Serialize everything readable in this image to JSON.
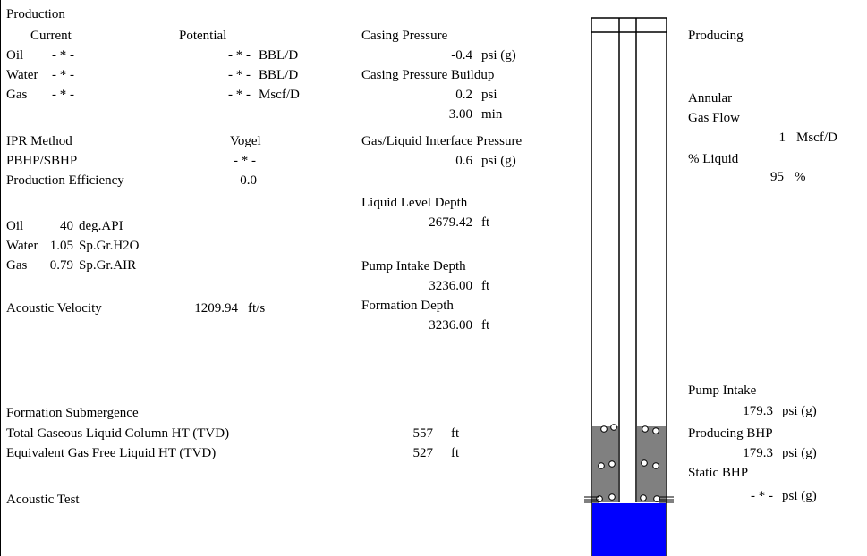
{
  "production": {
    "title": "Production",
    "current_label": "Current",
    "potential_label": "Potential",
    "rows": [
      {
        "label": "Oil",
        "current": "- * -",
        "potential": "- * -",
        "unit": "BBL/D"
      },
      {
        "label": "Water",
        "current": "- * -",
        "potential": "- * -",
        "unit": "BBL/D"
      },
      {
        "label": "Gas",
        "current": "- * -",
        "potential": "- * -",
        "unit": "Mscf/D"
      }
    ],
    "ipr_method_label": "IPR Method",
    "ipr_method_value": "Vogel",
    "pbhp_sbhp_label": "PBHP/SBHP",
    "pbhp_sbhp_value": "- * -",
    "efficiency_label": "Production Efficiency",
    "efficiency_value": "0.0"
  },
  "fluids": [
    {
      "label": "Oil",
      "value": "40",
      "unit": "deg.API"
    },
    {
      "label": "Water",
      "value": "1.05",
      "unit": "Sp.Gr.H2O"
    },
    {
      "label": "Gas",
      "value": "0.79",
      "unit": "Sp.Gr.AIR"
    }
  ],
  "acoustic_velocity": {
    "label": "Acoustic Velocity",
    "value": "1209.94",
    "unit": "ft/s"
  },
  "submergence": {
    "label": "Formation Submergence",
    "total_label": "Total Gaseous Liquid Column HT (TVD)",
    "total_value": "557",
    "total_unit": "ft",
    "equiv_label": "Equivalent Gas Free Liquid HT (TVD)",
    "equiv_value": "527",
    "equiv_unit": "ft"
  },
  "acoustic_test_label": "Acoustic Test",
  "pressures": {
    "casing_pressure_label": "Casing Pressure",
    "casing_pressure_value": "-0.4",
    "casing_pressure_unit": "psi (g)",
    "buildup_label": "Casing Pressure Buildup",
    "buildup_value": "0.2",
    "buildup_unit": "psi",
    "buildup_time_value": "3.00",
    "buildup_time_unit": "min",
    "interface_label": "Gas/Liquid Interface Pressure",
    "interface_value": "0.6",
    "interface_unit": "psi (g)"
  },
  "depths": {
    "liquid_level_label": "Liquid Level Depth",
    "liquid_level_value": "2679.42",
    "liquid_level_unit": "ft",
    "pump_intake_label": "Pump Intake Depth",
    "pump_intake_value": "3236.00",
    "pump_intake_unit": "ft",
    "formation_label": "Formation Depth",
    "formation_value": "3236.00",
    "formation_unit": "ft"
  },
  "right_panel": {
    "status": "Producing",
    "annular_label": "Annular",
    "gas_flow_label": "Gas Flow",
    "gas_flow_value": "1",
    "gas_flow_unit": "Mscf/D",
    "liquid_pct_label": "% Liquid",
    "liquid_pct_value": "95",
    "liquid_pct_unit": "%",
    "pump_intake_label": "Pump Intake",
    "pump_intake_value": "179.3",
    "pump_intake_unit": "psi (g)",
    "producing_bhp_label": "Producing BHP",
    "producing_bhp_value": "179.3",
    "producing_bhp_unit": "psi (g)",
    "static_bhp_label": "Static BHP",
    "static_bhp_value": "- * -",
    "static_bhp_unit": "psi (g)"
  },
  "colors": {
    "gas_liquid_column": "#808080",
    "liquid": "#0000ff",
    "background": "#ffffff"
  }
}
